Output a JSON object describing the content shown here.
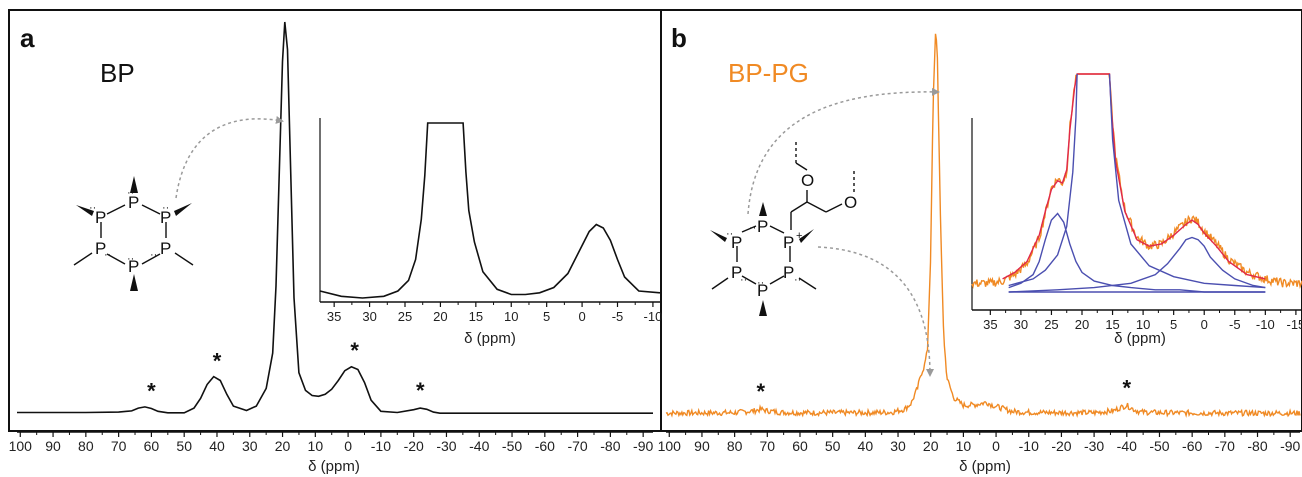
{
  "colors": {
    "spectrum_a": "#111111",
    "spectrum_b": "#f08a24",
    "fit_component": "#4b4fb0",
    "fit_envelope": "#e0284a",
    "fit_sum": "#b05cc8",
    "arrow": "#9a9a9a",
    "sample_b_label": "#f08a24"
  },
  "panels": {
    "a": {
      "letter": "a",
      "sample": "BP"
    },
    "b": {
      "letter": "b",
      "sample": "BP-PG"
    }
  },
  "molecule": {
    "atom_P": "P",
    "atom_P_plus": "P",
    "plus": "+",
    "atom_O": "O",
    "lone_pair": "··"
  },
  "chart_data": [
    {
      "id": "panel-a-main",
      "type": "line",
      "title": "",
      "xlabel": "δ (ppm)",
      "ylabel": "",
      "xlim": [
        101,
        -93
      ],
      "xticks": [
        100,
        90,
        80,
        70,
        60,
        50,
        40,
        30,
        20,
        10,
        0,
        -10,
        -20,
        -30,
        -40,
        -50,
        -60,
        -70,
        -80,
        -90
      ],
      "xtick_labels": [
        "100",
        "90",
        "80",
        "70",
        "60",
        "50",
        "40",
        "30",
        "20",
        "10",
        "0",
        "-10",
        "-20",
        "-30",
        "-40",
        "-50",
        "-60",
        "-70",
        "-80",
        "-90"
      ],
      "series": [
        {
          "style": "solid",
          "color": "#111111",
          "x": [
            101,
            80,
            70,
            66,
            64,
            62,
            60,
            58,
            55,
            50,
            47,
            45,
            43,
            41,
            39,
            37,
            35,
            31,
            28,
            25,
            23,
            22,
            21,
            20,
            19.3,
            18.5,
            17.5,
            16.5,
            15,
            13,
            11,
            9,
            7,
            5,
            3,
            1,
            -1,
            -3,
            -5,
            -7,
            -10,
            -15,
            -20,
            -22,
            -24,
            -26,
            -28,
            -32,
            -40,
            -60,
            -80,
            -93
          ],
          "y": [
            0.009,
            0.009,
            0.01,
            0.013,
            0.02,
            0.023,
            0.019,
            0.012,
            0.008,
            0.008,
            0.02,
            0.045,
            0.08,
            0.1,
            0.09,
            0.055,
            0.025,
            0.014,
            0.025,
            0.07,
            0.16,
            0.33,
            0.62,
            0.9,
            1.0,
            0.93,
            0.62,
            0.3,
            0.11,
            0.065,
            0.052,
            0.05,
            0.055,
            0.068,
            0.09,
            0.115,
            0.125,
            0.118,
            0.085,
            0.04,
            0.012,
            0.009,
            0.016,
            0.02,
            0.017,
            0.01,
            0.007,
            0.007,
            0.007,
            0.007,
            0.007,
            0.007
          ]
        }
      ],
      "annotations": [
        {
          "text": "*",
          "x": 60
        },
        {
          "text": "*",
          "x": 40
        },
        {
          "text": "*",
          "x": -2
        },
        {
          "text": "*",
          "x": -22
        }
      ]
    },
    {
      "id": "panel-a-inset",
      "type": "line",
      "title": "",
      "xlabel": "δ (ppm)",
      "ylabel": "",
      "xlim": [
        37,
        -11
      ],
      "xticks": [
        35,
        30,
        25,
        20,
        15,
        10,
        5,
        0,
        -5,
        -10
      ],
      "xtick_labels": [
        "35",
        "30",
        "25",
        "20",
        "15",
        "10",
        "5",
        "0",
        "-5",
        "-10"
      ],
      "series": [
        {
          "style": "solid",
          "color": "#111111",
          "x": [
            37,
            34,
            31,
            28,
            26,
            24.5,
            23.5,
            22.7,
            22.2,
            21.8,
            16.8,
            16.4,
            16,
            15.2,
            14,
            12,
            10,
            8,
            6,
            4,
            2,
            0,
            -1,
            -2,
            -3,
            -4,
            -5,
            -6,
            -8,
            -11
          ],
          "y": [
            0.04,
            0.01,
            0.0,
            0.01,
            0.04,
            0.1,
            0.22,
            0.45,
            0.7,
            1.0,
            1.0,
            0.72,
            0.5,
            0.32,
            0.15,
            0.05,
            0.02,
            0.02,
            0.03,
            0.06,
            0.14,
            0.3,
            0.38,
            0.42,
            0.4,
            0.33,
            0.22,
            0.12,
            0.04,
            0.03
          ]
        }
      ]
    },
    {
      "id": "panel-b-main",
      "type": "line",
      "title": "",
      "xlabel": "δ (ppm)",
      "ylabel": "",
      "xlim": [
        101,
        -93
      ],
      "xticks": [
        100,
        90,
        80,
        70,
        60,
        50,
        40,
        30,
        20,
        10,
        0,
        -10,
        -20,
        -30,
        -40,
        -50,
        -60,
        -70,
        -80,
        -90
      ],
      "xtick_labels": [
        "100",
        "90",
        "80",
        "70",
        "60",
        "50",
        "40",
        "30",
        "20",
        "10",
        "0",
        "-10",
        "-20",
        "-30",
        "-40",
        "-50",
        "-60",
        "-70",
        "-80",
        "-90"
      ],
      "series": [
        {
          "style": "noisy",
          "color": "#f08a24",
          "x": [
            101,
            80,
            74,
            72,
            70,
            66,
            60,
            50,
            40,
            32,
            28,
            26,
            25,
            24,
            23,
            22,
            21,
            20,
            19.3,
            18.5,
            18,
            17,
            16,
            15,
            13,
            10,
            6,
            3,
            1,
            -2,
            -5,
            -10,
            -20,
            -30,
            -36,
            -38,
            -40,
            -42,
            -44,
            -50,
            -70,
            -93
          ],
          "y": [
            0.01,
            0.011,
            0.016,
            0.02,
            0.016,
            0.012,
            0.011,
            0.011,
            0.011,
            0.012,
            0.02,
            0.035,
            0.055,
            0.075,
            0.11,
            0.13,
            0.17,
            0.42,
            0.8,
            1.0,
            0.95,
            0.5,
            0.2,
            0.1,
            0.05,
            0.03,
            0.032,
            0.038,
            0.03,
            0.022,
            0.014,
            0.012,
            0.011,
            0.011,
            0.016,
            0.024,
            0.03,
            0.02,
            0.013,
            0.011,
            0.01,
            0.01
          ]
        }
      ],
      "annotations": [
        {
          "text": "*",
          "x": 72
        },
        {
          "text": "*",
          "x": -40
        }
      ]
    },
    {
      "id": "panel-b-inset",
      "type": "line",
      "title": "",
      "xlabel": "δ (ppm)",
      "ylabel": "",
      "xlim": [
        38,
        -16
      ],
      "xticks": [
        35,
        30,
        25,
        20,
        15,
        10,
        5,
        0,
        -5,
        -10,
        -15
      ],
      "xtick_labels": [
        "35",
        "30",
        "25",
        "20",
        "15",
        "10",
        "5",
        "0",
        "-5",
        "-10",
        "-15"
      ],
      "series": [
        {
          "style": "noisy",
          "color": "#f08a24",
          "x": [
            38,
            35,
            33,
            31,
            29,
            27,
            26,
            25,
            24,
            23.2,
            22.5,
            22,
            21.2,
            20.8,
            15.5,
            15.2,
            14.5,
            13,
            11,
            9,
            7,
            5,
            3,
            2,
            1,
            0,
            -2,
            -4,
            -7,
            -10,
            -13,
            -16
          ],
          "y": [
            0.04,
            0.04,
            0.05,
            0.08,
            0.13,
            0.25,
            0.36,
            0.48,
            0.52,
            0.5,
            0.55,
            0.75,
            0.95,
            1.0,
            1.0,
            0.85,
            0.62,
            0.38,
            0.25,
            0.21,
            0.22,
            0.27,
            0.32,
            0.34,
            0.32,
            0.28,
            0.22,
            0.15,
            0.09,
            0.06,
            0.04,
            0.04
          ]
        },
        {
          "style": "solid",
          "color": "#e0284a",
          "x": [
            33,
            31,
            29,
            27,
            26,
            25,
            24,
            23.2,
            22.5,
            22,
            21.2,
            20.8,
            15.5,
            15.2,
            14.5,
            13,
            11,
            9,
            7,
            5,
            3,
            2,
            1,
            0,
            -2,
            -4,
            -7,
            -10
          ],
          "y": [
            0.06,
            0.09,
            0.14,
            0.26,
            0.37,
            0.47,
            0.51,
            0.5,
            0.56,
            0.74,
            0.94,
            1.0,
            1.0,
            0.84,
            0.6,
            0.37,
            0.24,
            0.21,
            0.22,
            0.26,
            0.31,
            0.33,
            0.31,
            0.27,
            0.21,
            0.14,
            0.08,
            0.06
          ]
        },
        {
          "style": "solid",
          "color": "#4b4fb0",
          "x": [
            32,
            30,
            28,
            27,
            26,
            25,
            24,
            23,
            22,
            21,
            20,
            18,
            15,
            12,
            8,
            4,
            0,
            -4,
            -10
          ],
          "y": [
            0.02,
            0.04,
            0.08,
            0.14,
            0.24,
            0.33,
            0.36,
            0.32,
            0.22,
            0.14,
            0.09,
            0.05,
            0.03,
            0.02,
            0.01,
            0.01,
            0.0,
            0.0,
            0.0
          ]
        },
        {
          "style": "solid",
          "color": "#4b4fb0",
          "x": [
            32,
            24,
            18,
            12,
            8,
            6,
            4,
            3,
            2,
            1,
            0,
            -1,
            -3,
            -5,
            -8,
            -10
          ],
          "y": [
            0.0,
            0.01,
            0.02,
            0.04,
            0.08,
            0.13,
            0.2,
            0.24,
            0.25,
            0.24,
            0.21,
            0.16,
            0.1,
            0.06,
            0.03,
            0.02
          ]
        },
        {
          "style": "solid",
          "color": "#4b4fb0",
          "x": [
            32,
            28,
            26,
            24,
            22.5,
            21.5,
            21,
            20.8
          ],
          "y": [
            0.03,
            0.06,
            0.1,
            0.17,
            0.3,
            0.55,
            0.8,
            1.0
          ]
        },
        {
          "style": "solid",
          "color": "#4b4fb0",
          "x": [
            15.5,
            15,
            14,
            12,
            9,
            5,
            0,
            -5,
            -10
          ],
          "y": [
            1.0,
            0.7,
            0.42,
            0.22,
            0.12,
            0.07,
            0.04,
            0.03,
            0.02
          ]
        },
        {
          "style": "solid",
          "color": "#4b4fb0",
          "x": [
            32,
            25,
            15,
            5,
            0,
            -10
          ],
          "y": [
            0.0,
            0.0,
            0.0,
            0.0,
            0.0,
            0.0
          ]
        }
      ]
    }
  ]
}
